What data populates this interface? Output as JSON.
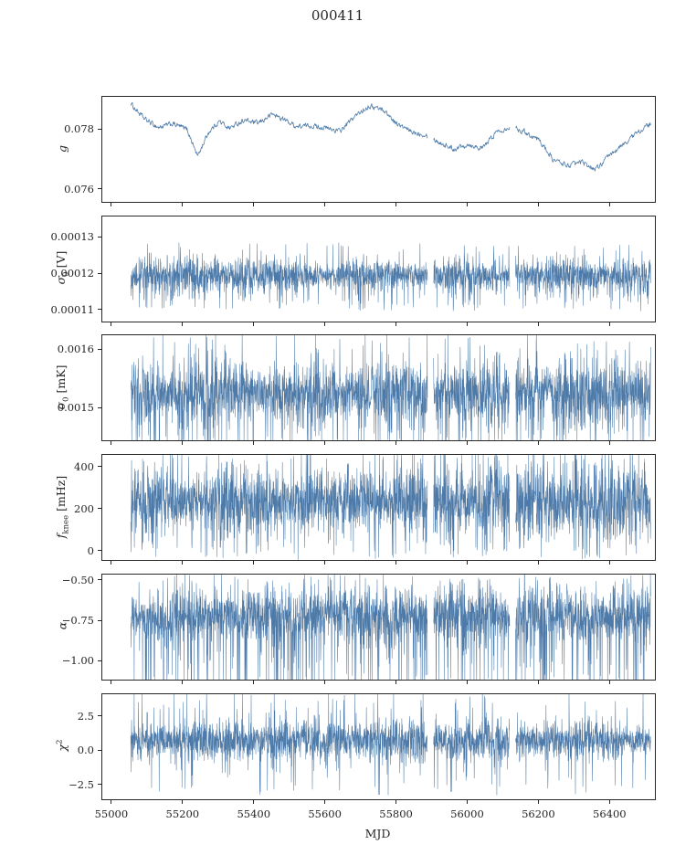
{
  "title": "000411",
  "chart_data": {
    "type": "line",
    "xlabel": "MJD",
    "line_color": "#4d7aa8",
    "x_axis": {
      "lim": [
        54972,
        56525
      ],
      "tick_values": [
        55000,
        55200,
        55400,
        55600,
        55800,
        56000,
        56200,
        56400
      ],
      "ticks": [
        "55000",
        "55200",
        "55400",
        "55600",
        "55800",
        "56000",
        "56200",
        "56400"
      ]
    },
    "x_data_range": [
      55052,
      56513
    ],
    "gaps": [
      [
        55886,
        55903
      ],
      [
        56117,
        56133
      ]
    ],
    "panels": [
      {
        "id": "g",
        "ylabel": {
          "main": "g",
          "sub": "",
          "sup": "",
          "unit": ""
        },
        "ylim": [
          0.0756,
          0.0791
        ],
        "yticks": [
          {
            "value": 0.076,
            "label": "0.076"
          },
          {
            "value": 0.078,
            "label": "0.078"
          }
        ],
        "series": {
          "kind": "keypoints",
          "jitter": 0.00013,
          "points": [
            [
              55052,
              0.0789
            ],
            [
              55090,
              0.0784
            ],
            [
              55130,
              0.0781
            ],
            [
              55170,
              0.0782
            ],
            [
              55210,
              0.078
            ],
            [
              55240,
              0.0771
            ],
            [
              55270,
              0.0779
            ],
            [
              55300,
              0.0783
            ],
            [
              55330,
              0.0781
            ],
            [
              55370,
              0.0784
            ],
            [
              55410,
              0.0783
            ],
            [
              55450,
              0.0786
            ],
            [
              55480,
              0.0784
            ],
            [
              55520,
              0.0781
            ],
            [
              55560,
              0.0781
            ],
            [
              55600,
              0.078
            ],
            [
              55640,
              0.0779
            ],
            [
              55680,
              0.0784
            ],
            [
              55720,
              0.0788
            ],
            [
              55760,
              0.0787
            ],
            [
              55800,
              0.0782
            ],
            [
              55840,
              0.0779
            ],
            [
              55880,
              0.0778
            ],
            [
              55920,
              0.0775
            ],
            [
              55960,
              0.0773
            ],
            [
              56000,
              0.0775
            ],
            [
              56040,
              0.0774
            ],
            [
              56080,
              0.078
            ],
            [
              56120,
              0.0782
            ],
            [
              56160,
              0.078
            ],
            [
              56200,
              0.0777
            ],
            [
              56240,
              0.077
            ],
            [
              56280,
              0.0768
            ],
            [
              56320,
              0.0769
            ],
            [
              56360,
              0.0767
            ],
            [
              56400,
              0.0772
            ],
            [
              56440,
              0.0776
            ],
            [
              56480,
              0.078
            ],
            [
              56513,
              0.0782
            ]
          ]
        }
      },
      {
        "id": "sigma0_V",
        "ylabel": {
          "main": "σ",
          "sub": "0",
          "sup": "",
          "unit": " [V]"
        },
        "ylim": [
          0.000107,
          0.000136
        ],
        "yticks": [
          {
            "value": 0.00011,
            "label": "0.00011"
          },
          {
            "value": 0.00012,
            "label": "0.00012"
          },
          {
            "value": 0.00013,
            "label": "0.00013"
          }
        ],
        "series": {
          "kind": "noise",
          "mean": 0.0001198,
          "band": 4.2e-06,
          "p_down": 0.05,
          "down_extra": 0.6,
          "p_up": 0.02,
          "up_extra": 0.5
        }
      },
      {
        "id": "sigma0_mK",
        "ylabel": {
          "main": "σ",
          "sub": "0",
          "sup": "",
          "unit": " [mK]"
        },
        "ylim": [
          0.001445,
          0.001625
        ],
        "yticks": [
          {
            "value": 0.0015,
            "label": "0.0015"
          },
          {
            "value": 0.0016,
            "label": "0.0016"
          }
        ],
        "series": {
          "kind": "noise",
          "mean": 0.001527,
          "band": 5.2e-05,
          "p_down": 0.06,
          "down_extra": 0.6,
          "p_up": 0.02,
          "up_extra": 0.45
        }
      },
      {
        "id": "fknee",
        "ylabel": {
          "main": "f",
          "sub": "knee",
          "sup": "",
          "unit": " [mHz]"
        },
        "ylim": [
          -40,
          460
        ],
        "yticks": [
          {
            "value": 0,
            "label": "0"
          },
          {
            "value": 200,
            "label": "200"
          },
          {
            "value": 400,
            "label": "400"
          }
        ],
        "series": {
          "kind": "noise",
          "mean": 238,
          "band": 150,
          "p_down": 0.04,
          "down_extra": 0.35,
          "p_up": 0.03,
          "up_extra": 0.35
        }
      },
      {
        "id": "alpha",
        "ylabel": {
          "main": "α",
          "sub": "",
          "sup": "",
          "unit": ""
        },
        "ylim": [
          -1.11,
          -0.46
        ],
        "yticks": [
          {
            "value": -0.5,
            "label": "−0.50"
          },
          {
            "value": -0.75,
            "label": "−0.75"
          },
          {
            "value": -1.0,
            "label": "−1.00"
          }
        ],
        "series": {
          "kind": "noise",
          "mean": -0.715,
          "band": 0.155,
          "p_down": 0.1,
          "down_extra": 1.3,
          "p_up": 0.02,
          "up_extra": 0.3
        }
      },
      {
        "id": "chi2",
        "ylabel": {
          "main": "χ",
          "sub": "",
          "sup": "2",
          "unit": ""
        },
        "ylim": [
          -3.5,
          4.2
        ],
        "yticks": [
          {
            "value": -2.5,
            "label": "−2.5"
          },
          {
            "value": 0.0,
            "label": "0.0"
          },
          {
            "value": 2.5,
            "label": "2.5"
          }
        ],
        "series": {
          "kind": "noise",
          "mean": 0.8,
          "band": 1.28,
          "p_down": 0.03,
          "down_extra": 1.0,
          "p_up": 0.03,
          "up_extra": 1.0
        }
      }
    ]
  }
}
